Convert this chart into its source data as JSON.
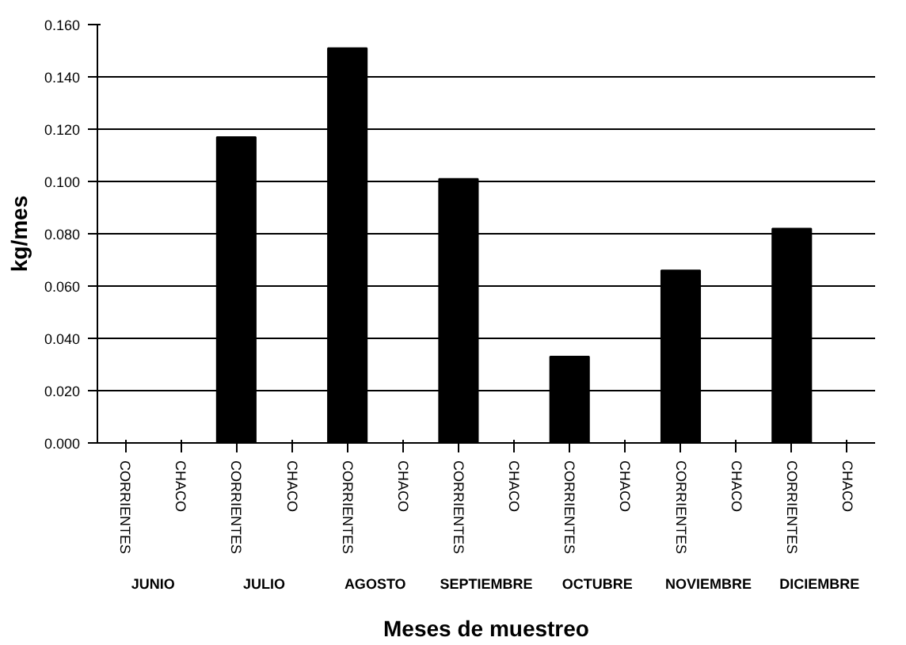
{
  "chart_data": {
    "type": "bar",
    "xlabel": "Meses de muestreo",
    "ylabel": "kg/mes",
    "categories": [
      "CORRIENTES",
      "CHACO",
      "CORRIENTES",
      "CHACO",
      "CORRIENTES",
      "CHACO",
      "CORRIENTES",
      "CHACO",
      "CORRIENTES",
      "CHACO",
      "CORRIENTES",
      "CHACO",
      "CORRIENTES",
      "CHACO"
    ],
    "annotations": [
      "JUNIO",
      "JULIO",
      "AGOSTO",
      "SEPTIEMBRE",
      "OCTUBRE",
      "NOVIEMBRE",
      "DICIEMBRE"
    ],
    "values": [
      0,
      0,
      0.117,
      0,
      0.151,
      0,
      0.101,
      0,
      0.033,
      0,
      0.066,
      0,
      0.082,
      0
    ],
    "color": "#000000",
    "ylim": [
      0,
      0.16
    ],
    "yticks": [
      {
        "value": 0,
        "label": "0.000"
      },
      {
        "value": 0.02,
        "label": "0.020"
      },
      {
        "value": 0.04,
        "label": "0.040"
      },
      {
        "value": 0.06,
        "label": "0.060"
      },
      {
        "value": 0.08,
        "label": "0.080"
      },
      {
        "value": 0.1,
        "label": "0.100"
      },
      {
        "value": 0.12,
        "label": "0.120"
      },
      {
        "value": 0.14,
        "label": "0.140"
      },
      {
        "value": 0.16,
        "label": "0.160"
      }
    ],
    "grid": "y"
  }
}
